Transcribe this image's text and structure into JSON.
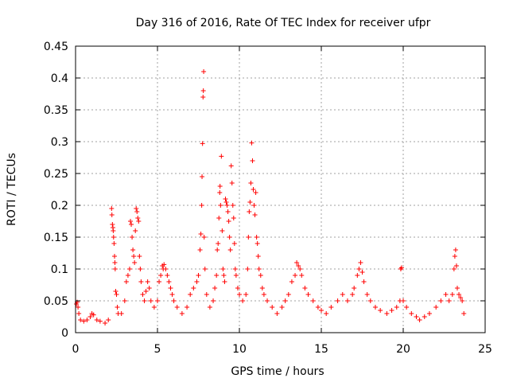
{
  "chart_data": {
    "type": "scatter",
    "title": "Day 316 of 2016, Rate Of TEC Index for receiver ufpr",
    "xlabel": "GPS time / hours",
    "ylabel": "ROTI / TECUs",
    "xlim": [
      0,
      25
    ],
    "ylim": [
      0,
      0.45
    ],
    "xticks": [
      "0",
      "5",
      "10",
      "15",
      "20",
      "25"
    ],
    "yticks": [
      "0",
      "0.05",
      "0.1",
      "0.15",
      "0.2",
      "0.25",
      "0.3",
      "0.35",
      "0.4",
      "0.45"
    ],
    "grid": true,
    "marker": "+",
    "color": "#ff0000",
    "series": [
      {
        "points": [
          [
            0.05,
            0.045
          ],
          [
            0.1,
            0.048
          ],
          [
            0.15,
            0.04
          ],
          [
            0.2,
            0.03
          ],
          [
            0.3,
            0.02
          ],
          [
            0.5,
            0.018
          ],
          [
            0.7,
            0.02
          ],
          [
            0.9,
            0.025
          ],
          [
            1.0,
            0.03
          ],
          [
            1.1,
            0.028
          ],
          [
            1.3,
            0.02
          ],
          [
            1.5,
            0.018
          ],
          [
            1.8,
            0.015
          ],
          [
            2.0,
            0.02
          ],
          [
            2.2,
            0.195
          ],
          [
            2.22,
            0.185
          ],
          [
            2.25,
            0.17
          ],
          [
            2.28,
            0.165
          ],
          [
            2.3,
            0.16
          ],
          [
            2.32,
            0.15
          ],
          [
            2.35,
            0.14
          ],
          [
            2.38,
            0.12
          ],
          [
            2.4,
            0.11
          ],
          [
            2.42,
            0.1
          ],
          [
            2.45,
            0.065
          ],
          [
            2.5,
            0.06
          ],
          [
            2.55,
            0.04
          ],
          [
            2.6,
            0.03
          ],
          [
            2.8,
            0.03
          ],
          [
            3.0,
            0.05
          ],
          [
            3.1,
            0.08
          ],
          [
            3.2,
            0.09
          ],
          [
            3.3,
            0.1
          ],
          [
            3.35,
            0.175
          ],
          [
            3.4,
            0.17
          ],
          [
            3.45,
            0.15
          ],
          [
            3.5,
            0.13
          ],
          [
            3.55,
            0.12
          ],
          [
            3.6,
            0.11
          ],
          [
            3.65,
            0.16
          ],
          [
            3.7,
            0.195
          ],
          [
            3.75,
            0.19
          ],
          [
            3.8,
            0.18
          ],
          [
            3.85,
            0.175
          ],
          [
            3.9,
            0.12
          ],
          [
            3.95,
            0.1
          ],
          [
            4.0,
            0.08
          ],
          [
            4.1,
            0.06
          ],
          [
            4.2,
            0.05
          ],
          [
            4.3,
            0.065
          ],
          [
            4.4,
            0.08
          ],
          [
            4.5,
            0.07
          ],
          [
            4.6,
            0.05
          ],
          [
            4.8,
            0.04
          ],
          [
            5.0,
            0.05
          ],
          [
            5.1,
            0.08
          ],
          [
            5.2,
            0.09
          ],
          [
            5.3,
            0.105
          ],
          [
            5.35,
            0.1
          ],
          [
            5.4,
            0.107
          ],
          [
            5.5,
            0.1
          ],
          [
            5.6,
            0.09
          ],
          [
            5.7,
            0.08
          ],
          [
            5.8,
            0.07
          ],
          [
            5.9,
            0.06
          ],
          [
            6.0,
            0.05
          ],
          [
            6.2,
            0.04
          ],
          [
            6.5,
            0.03
          ],
          [
            6.8,
            0.04
          ],
          [
            7.0,
            0.06
          ],
          [
            7.2,
            0.07
          ],
          [
            7.4,
            0.08
          ],
          [
            7.5,
            0.09
          ],
          [
            7.6,
            0.13
          ],
          [
            7.65,
            0.155
          ],
          [
            7.7,
            0.2
          ],
          [
            7.72,
            0.245
          ],
          [
            7.75,
            0.297
          ],
          [
            7.78,
            0.37
          ],
          [
            7.8,
            0.38
          ],
          [
            7.82,
            0.41
          ],
          [
            7.85,
            0.15
          ],
          [
            7.9,
            0.1
          ],
          [
            8.0,
            0.06
          ],
          [
            8.2,
            0.04
          ],
          [
            8.4,
            0.05
          ],
          [
            8.5,
            0.07
          ],
          [
            8.6,
            0.09
          ],
          [
            8.65,
            0.13
          ],
          [
            8.7,
            0.14
          ],
          [
            8.75,
            0.18
          ],
          [
            8.8,
            0.22
          ],
          [
            8.82,
            0.23
          ],
          [
            8.85,
            0.2
          ],
          [
            8.9,
            0.277
          ],
          [
            8.95,
            0.16
          ],
          [
            9.0,
            0.1
          ],
          [
            9.05,
            0.09
          ],
          [
            9.1,
            0.08
          ],
          [
            9.15,
            0.21
          ],
          [
            9.2,
            0.205
          ],
          [
            9.25,
            0.2
          ],
          [
            9.3,
            0.19
          ],
          [
            9.35,
            0.175
          ],
          [
            9.4,
            0.15
          ],
          [
            9.45,
            0.13
          ],
          [
            9.5,
            0.262
          ],
          [
            9.55,
            0.235
          ],
          [
            9.6,
            0.2
          ],
          [
            9.65,
            0.18
          ],
          [
            9.7,
            0.14
          ],
          [
            9.75,
            0.1
          ],
          [
            9.8,
            0.09
          ],
          [
            9.9,
            0.07
          ],
          [
            10.0,
            0.06
          ],
          [
            10.2,
            0.05
          ],
          [
            10.4,
            0.06
          ],
          [
            10.5,
            0.1
          ],
          [
            10.55,
            0.15
          ],
          [
            10.6,
            0.19
          ],
          [
            10.65,
            0.205
          ],
          [
            10.7,
            0.235
          ],
          [
            10.75,
            0.298
          ],
          [
            10.8,
            0.27
          ],
          [
            10.85,
            0.225
          ],
          [
            10.9,
            0.2
          ],
          [
            10.95,
            0.185
          ],
          [
            11.0,
            0.22
          ],
          [
            11.05,
            0.15
          ],
          [
            11.1,
            0.14
          ],
          [
            11.15,
            0.12
          ],
          [
            11.2,
            0.1
          ],
          [
            11.3,
            0.09
          ],
          [
            11.4,
            0.07
          ],
          [
            11.5,
            0.06
          ],
          [
            11.7,
            0.05
          ],
          [
            12.0,
            0.04
          ],
          [
            12.3,
            0.03
          ],
          [
            12.6,
            0.04
          ],
          [
            12.8,
            0.05
          ],
          [
            13.0,
            0.06
          ],
          [
            13.2,
            0.08
          ],
          [
            13.4,
            0.09
          ],
          [
            13.5,
            0.11
          ],
          [
            13.6,
            0.105
          ],
          [
            13.7,
            0.1
          ],
          [
            13.8,
            0.09
          ],
          [
            14.0,
            0.07
          ],
          [
            14.2,
            0.06
          ],
          [
            14.5,
            0.05
          ],
          [
            14.8,
            0.04
          ],
          [
            15.0,
            0.035
          ],
          [
            15.3,
            0.03
          ],
          [
            15.6,
            0.04
          ],
          [
            16.0,
            0.05
          ],
          [
            16.3,
            0.06
          ],
          [
            16.6,
            0.05
          ],
          [
            16.9,
            0.06
          ],
          [
            17.0,
            0.07
          ],
          [
            17.2,
            0.09
          ],
          [
            17.3,
            0.1
          ],
          [
            17.4,
            0.11
          ],
          [
            17.5,
            0.095
          ],
          [
            17.6,
            0.08
          ],
          [
            17.8,
            0.06
          ],
          [
            18.0,
            0.05
          ],
          [
            18.3,
            0.04
          ],
          [
            18.6,
            0.035
          ],
          [
            19.0,
            0.03
          ],
          [
            19.3,
            0.035
          ],
          [
            19.6,
            0.04
          ],
          [
            19.8,
            0.05
          ],
          [
            19.85,
            0.1
          ],
          [
            19.9,
            0.102
          ],
          [
            20.0,
            0.05
          ],
          [
            20.2,
            0.04
          ],
          [
            20.5,
            0.03
          ],
          [
            20.8,
            0.025
          ],
          [
            21.0,
            0.02
          ],
          [
            21.3,
            0.025
          ],
          [
            21.6,
            0.03
          ],
          [
            22.0,
            0.04
          ],
          [
            22.3,
            0.05
          ],
          [
            22.6,
            0.06
          ],
          [
            22.8,
            0.05
          ],
          [
            23.0,
            0.06
          ],
          [
            23.1,
            0.1
          ],
          [
            23.15,
            0.12
          ],
          [
            23.2,
            0.13
          ],
          [
            23.25,
            0.105
          ],
          [
            23.3,
            0.07
          ],
          [
            23.4,
            0.06
          ],
          [
            23.5,
            0.055
          ],
          [
            23.6,
            0.05
          ],
          [
            23.7,
            0.03
          ]
        ]
      }
    ]
  }
}
